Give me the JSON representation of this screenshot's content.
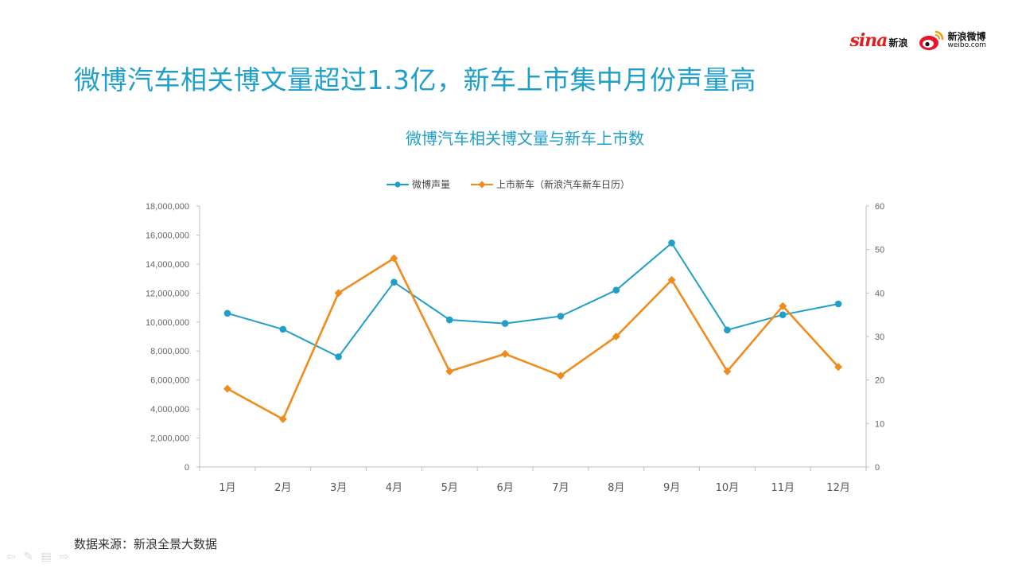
{
  "slide": {
    "title": "微博汽车相关博文量超过1.3亿，新车上市集中月份声量高",
    "source": "数据来源：新浪全景大数据"
  },
  "logos": {
    "sina_word": "sina",
    "sina_cn": "新浪",
    "weibo_cn": "新浪微博",
    "weibo_url": "weibo.com"
  },
  "colors": {
    "title": "#1f9fc9",
    "series1": "#1f9fc9",
    "series2": "#f08c1e",
    "axis": "#bfbfbf"
  },
  "chart_data": {
    "type": "line",
    "title": "微博汽车相关博文量与新车上市数",
    "categories": [
      "1月",
      "2月",
      "3月",
      "4月",
      "5月",
      "6月",
      "7月",
      "8月",
      "9月",
      "10月",
      "11月",
      "12月"
    ],
    "series": [
      {
        "name": "微博声量",
        "axis": "left",
        "marker": "circle",
        "values": [
          10600000,
          9500000,
          7600000,
          12750000,
          10150000,
          9900000,
          10400000,
          12200000,
          15450000,
          9450000,
          10500000,
          11250000
        ]
      },
      {
        "name": "上市新车（新浪汽车新车日历）",
        "axis": "right",
        "marker": "diamond",
        "values": [
          18,
          11,
          40,
          48,
          22,
          26,
          21,
          30,
          43,
          22,
          37,
          23
        ]
      }
    ],
    "y_left": {
      "lim": [
        0,
        18000000
      ],
      "ticks": [
        "0",
        "2,000,000",
        "4,000,000",
        "6,000,000",
        "8,000,000",
        "10,000,000",
        "12,000,000",
        "14,000,000",
        "16,000,000",
        "18,000,000"
      ]
    },
    "y_right": {
      "lim": [
        0,
        60
      ],
      "ticks": [
        "0",
        "10",
        "20",
        "30",
        "40",
        "50",
        "60"
      ]
    },
    "grid": false,
    "legend_position": "top"
  }
}
